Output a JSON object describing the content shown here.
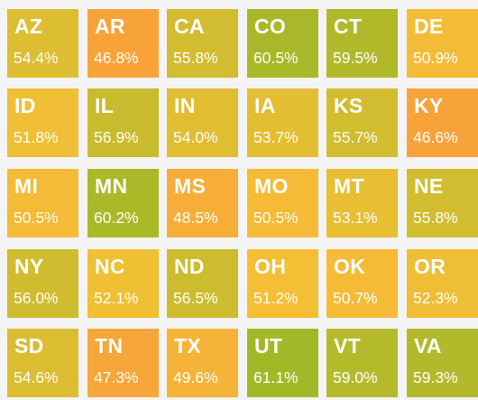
{
  "chart_data": {
    "type": "heatmap",
    "layout": "tile grid, 6 columns x 5 rows",
    "unit": "%",
    "color_scale": {
      "low": "#f8a23a",
      "mid": "#f4bf35",
      "high": "#a2b827"
    },
    "tiles": [
      {
        "label": "AZ",
        "value": 54.4,
        "display": "54.4%"
      },
      {
        "label": "AR",
        "value": 46.8,
        "display": "46.8%"
      },
      {
        "label": "CA",
        "value": 55.8,
        "display": "55.8%"
      },
      {
        "label": "CO",
        "value": 60.5,
        "display": "60.5%"
      },
      {
        "label": "CT",
        "value": 59.5,
        "display": "59.5%"
      },
      {
        "label": "DE",
        "value": 50.9,
        "display": "50.9%"
      },
      {
        "label": "ID",
        "value": 51.8,
        "display": "51.8%"
      },
      {
        "label": "IL",
        "value": 56.9,
        "display": "56.9%"
      },
      {
        "label": "IN",
        "value": 54.0,
        "display": "54.0%"
      },
      {
        "label": "IA",
        "value": 53.7,
        "display": "53.7%"
      },
      {
        "label": "KS",
        "value": 55.7,
        "display": "55.7%"
      },
      {
        "label": "KY",
        "value": 46.6,
        "display": "46.6%"
      },
      {
        "label": "MI",
        "value": 50.5,
        "display": "50.5%"
      },
      {
        "label": "MN",
        "value": 60.2,
        "display": "60.2%"
      },
      {
        "label": "MS",
        "value": 48.5,
        "display": "48.5%"
      },
      {
        "label": "MO",
        "value": 50.5,
        "display": "50.5%"
      },
      {
        "label": "MT",
        "value": 53.1,
        "display": "53.1%"
      },
      {
        "label": "NE",
        "value": 55.8,
        "display": "55.8%"
      },
      {
        "label": "NY",
        "value": 56.0,
        "display": "56.0%"
      },
      {
        "label": "NC",
        "value": 52.1,
        "display": "52.1%"
      },
      {
        "label": "ND",
        "value": 56.5,
        "display": "56.5%"
      },
      {
        "label": "OH",
        "value": 51.2,
        "display": "51.2%"
      },
      {
        "label": "OK",
        "value": 50.7,
        "display": "50.7%"
      },
      {
        "label": "OR",
        "value": 52.3,
        "display": "52.3%"
      },
      {
        "label": "SD",
        "value": 54.6,
        "display": "54.6%"
      },
      {
        "label": "TN",
        "value": 47.3,
        "display": "47.3%"
      },
      {
        "label": "TX",
        "value": 49.6,
        "display": "49.6%"
      },
      {
        "label": "UT",
        "value": 61.1,
        "display": "61.1%"
      },
      {
        "label": "VT",
        "value": 59.0,
        "display": "59.0%"
      },
      {
        "label": "VA",
        "value": 59.3,
        "display": "59.3%"
      }
    ]
  }
}
